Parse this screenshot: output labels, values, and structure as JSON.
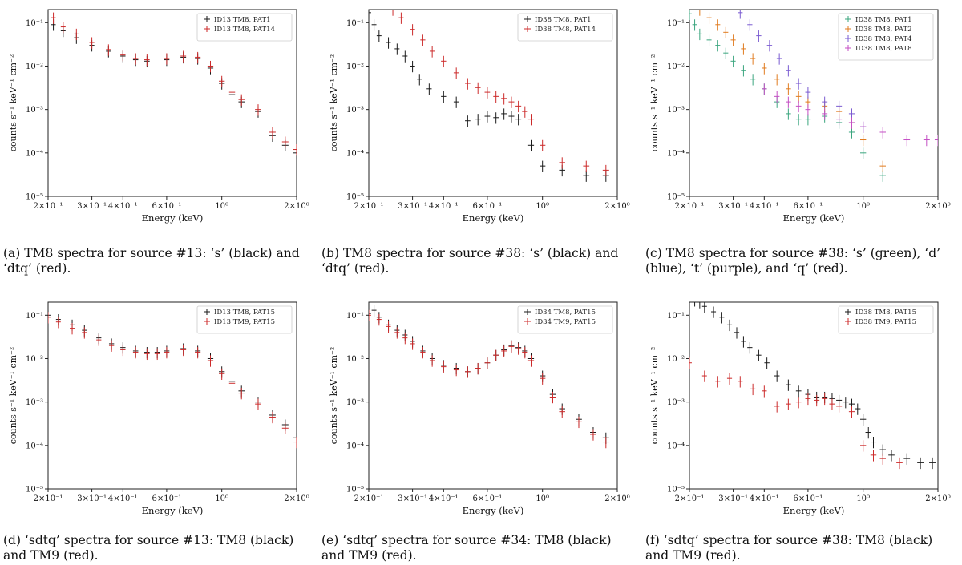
{
  "chart_data": [
    {
      "type": "scatter",
      "caption": "(a) TM8 spectra for source #13: ‘s’ (black) and ‘dtq’ (red).",
      "xlabel": "Energy (keV)",
      "ylabel": "counts s⁻¹ keV⁻¹ cm⁻²",
      "xscale": "log",
      "yscale": "log",
      "xlim": [
        0.2,
        2.0
      ],
      "ylim": [
        1e-05,
        0.2
      ],
      "xticks": [
        {
          "value": 0.2,
          "label": "2×10⁻¹"
        },
        {
          "value": 0.3,
          "label": "3×10⁻¹"
        },
        {
          "value": 0.4,
          "label": "4×10⁻¹"
        },
        {
          "value": 0.6,
          "label": "6×10⁻¹"
        },
        {
          "value": 1.0,
          "label": "10⁰"
        },
        {
          "value": 2.0,
          "label": "2×10⁰"
        }
      ],
      "yticks": [
        {
          "value": 0.1,
          "label": "10⁻¹"
        },
        {
          "value": 0.01,
          "label": "10⁻²"
        },
        {
          "value": 0.001,
          "label": "10⁻³"
        },
        {
          "value": 0.0001,
          "label": "10⁻⁴"
        },
        {
          "value": 1e-05,
          "label": "10⁻⁵"
        }
      ],
      "legend": "top-right",
      "series": [
        {
          "name": "ID13 TM8, PAT1",
          "color": "#1a1a1a",
          "x": [
            0.21,
            0.23,
            0.26,
            0.3,
            0.35,
            0.4,
            0.45,
            0.5,
            0.6,
            0.7,
            0.8,
            0.9,
            1.0,
            1.1,
            1.2,
            1.4,
            1.6,
            1.8,
            2.0
          ],
          "y": [
            0.09,
            0.065,
            0.045,
            0.03,
            0.022,
            0.017,
            0.014,
            0.013,
            0.014,
            0.016,
            0.015,
            0.009,
            0.004,
            0.0022,
            0.0015,
            0.0009,
            0.00025,
            0.00015,
            0.0001
          ]
        },
        {
          "name": "ID13 TM8, PAT14",
          "color": "#cc2a2a",
          "x": [
            0.21,
            0.23,
            0.26,
            0.3,
            0.35,
            0.4,
            0.45,
            0.5,
            0.6,
            0.7,
            0.8,
            0.9,
            1.0,
            1.1,
            1.2,
            1.4,
            1.6,
            1.8,
            2.0
          ],
          "y": [
            0.13,
            0.08,
            0.055,
            0.035,
            0.024,
            0.018,
            0.015,
            0.014,
            0.015,
            0.017,
            0.016,
            0.01,
            0.0045,
            0.0025,
            0.0017,
            0.001,
            0.0003,
            0.00018,
            0.00012
          ]
        }
      ]
    },
    {
      "type": "scatter",
      "caption": "(b) TM8 spectra for source #38: ‘s’ (black) and ‘dtq’ (red).",
      "xlabel": "Energy (keV)",
      "ylabel": "counts s⁻¹ keV⁻¹ cm⁻²",
      "xscale": "log",
      "yscale": "log",
      "xlim": [
        0.2,
        2.0
      ],
      "ylim": [
        1e-05,
        0.2
      ],
      "xticks": [
        {
          "value": 0.2,
          "label": "2×10⁻¹"
        },
        {
          "value": 0.3,
          "label": "3×10⁻¹"
        },
        {
          "value": 0.4,
          "label": "4×10⁻¹"
        },
        {
          "value": 0.6,
          "label": "6×10⁻¹"
        },
        {
          "value": 1.0,
          "label": "10⁰"
        },
        {
          "value": 2.0,
          "label": "2×10⁰"
        }
      ],
      "yticks": [
        {
          "value": 0.1,
          "label": "10⁻¹"
        },
        {
          "value": 0.01,
          "label": "10⁻²"
        },
        {
          "value": 0.001,
          "label": "10⁻³"
        },
        {
          "value": 0.0001,
          "label": "10⁻⁴"
        },
        {
          "value": 1e-05,
          "label": "10⁻⁵"
        }
      ],
      "legend": "top-right",
      "series": [
        {
          "name": "ID38 TM8, PAT1",
          "color": "#1a1a1a",
          "x": [
            0.2,
            0.21,
            0.22,
            0.24,
            0.26,
            0.28,
            0.3,
            0.32,
            0.35,
            0.4,
            0.45,
            0.5,
            0.55,
            0.6,
            0.65,
            0.7,
            0.75,
            0.8,
            0.9,
            1.0,
            1.2,
            1.5,
            1.8
          ],
          "y": [
            0.17,
            0.09,
            0.05,
            0.035,
            0.025,
            0.017,
            0.01,
            0.005,
            0.003,
            0.002,
            0.0015,
            0.00055,
            0.0006,
            0.0007,
            0.00065,
            0.0008,
            0.0007,
            0.0006,
            0.00015,
            5e-05,
            4e-05,
            3e-05,
            3e-05
          ]
        },
        {
          "name": "ID38 TM8, PAT14",
          "color": "#cc2a2a",
          "x": [
            0.25,
            0.27,
            0.3,
            0.33,
            0.36,
            0.4,
            0.45,
            0.5,
            0.55,
            0.6,
            0.65,
            0.7,
            0.75,
            0.8,
            0.85,
            0.9,
            1.0,
            1.2,
            1.5,
            1.8
          ],
          "y": [
            0.2,
            0.13,
            0.07,
            0.04,
            0.022,
            0.013,
            0.007,
            0.004,
            0.0032,
            0.0025,
            0.002,
            0.0018,
            0.0015,
            0.0012,
            0.0009,
            0.0006,
            0.00015,
            6e-05,
            5e-05,
            4e-05
          ]
        }
      ]
    },
    {
      "type": "scatter",
      "caption": "(c) TM8 spectra for source #38: ‘s’ (green), ‘d’ (blue), ‘t’ (purple), and ‘q’ (red).",
      "xlabel": "Energy (keV)",
      "ylabel": "counts s⁻¹ keV⁻¹ cm⁻²",
      "xscale": "log",
      "yscale": "log",
      "xlim": [
        0.2,
        2.0
      ],
      "ylim": [
        1e-05,
        0.2
      ],
      "xticks": [
        {
          "value": 0.2,
          "label": "2×10⁻¹"
        },
        {
          "value": 0.3,
          "label": "3×10⁻¹"
        },
        {
          "value": 0.4,
          "label": "4×10⁻¹"
        },
        {
          "value": 0.6,
          "label": "6×10⁻¹"
        },
        {
          "value": 1.0,
          "label": "10⁰"
        },
        {
          "value": 2.0,
          "label": "2×10⁰"
        }
      ],
      "yticks": [
        {
          "value": 0.1,
          "label": "10⁻¹"
        },
        {
          "value": 0.01,
          "label": "10⁻²"
        },
        {
          "value": 0.001,
          "label": "10⁻³"
        },
        {
          "value": 0.0001,
          "label": "10⁻⁴"
        },
        {
          "value": 1e-05,
          "label": "10⁻⁵"
        }
      ],
      "legend": "top-right",
      "series": [
        {
          "name": "ID38 TM8, PAT1",
          "color": "#3aa57e",
          "x": [
            0.2,
            0.21,
            0.22,
            0.24,
            0.26,
            0.28,
            0.3,
            0.33,
            0.36,
            0.4,
            0.45,
            0.5,
            0.55,
            0.6,
            0.7,
            0.8,
            0.9,
            1.0,
            1.2
          ],
          "y": [
            0.16,
            0.09,
            0.055,
            0.04,
            0.03,
            0.02,
            0.013,
            0.008,
            0.005,
            0.003,
            0.0015,
            0.0008,
            0.0006,
            0.0006,
            0.0007,
            0.0005,
            0.0003,
            0.0001,
            3e-05
          ]
        },
        {
          "name": "ID38 TM8, PAT2",
          "color": "#e07b1f",
          "x": [
            0.22,
            0.24,
            0.26,
            0.28,
            0.3,
            0.33,
            0.36,
            0.4,
            0.45,
            0.5,
            0.55,
            0.6,
            0.7,
            0.8,
            0.9,
            1.0,
            1.2
          ],
          "y": [
            0.2,
            0.13,
            0.09,
            0.06,
            0.04,
            0.025,
            0.015,
            0.009,
            0.005,
            0.003,
            0.002,
            0.0015,
            0.0012,
            0.0009,
            0.0005,
            0.0002,
            5e-05
          ]
        },
        {
          "name": "ID38 TM8, PAT4",
          "color": "#7a5bd1",
          "x": [
            0.32,
            0.35,
            0.38,
            0.42,
            0.46,
            0.5,
            0.55,
            0.6,
            0.7,
            0.8,
            0.9,
            1.0
          ],
          "y": [
            0.17,
            0.09,
            0.05,
            0.03,
            0.015,
            0.008,
            0.004,
            0.0025,
            0.0015,
            0.0012,
            0.0008,
            0.0004
          ]
        },
        {
          "name": "ID38 TM8, PAT8",
          "color": "#c44fc4",
          "x": [
            0.4,
            0.45,
            0.5,
            0.55,
            0.6,
            0.7,
            0.8,
            0.9,
            1.0,
            1.2,
            1.5,
            1.8,
            2.0
          ],
          "y": [
            0.003,
            0.002,
            0.0015,
            0.0012,
            0.001,
            0.0008,
            0.0006,
            0.0005,
            0.0004,
            0.0003,
            0.0002,
            0.0002,
            0.0002
          ]
        }
      ]
    },
    {
      "type": "scatter",
      "caption": "(d) ‘sdtq’ spectra for source #13: TM8 (black) and TM9 (red).",
      "xlabel": "Energy (keV)",
      "ylabel": "counts s⁻¹ keV⁻¹ cm⁻²",
      "xscale": "log",
      "yscale": "log",
      "xlim": [
        0.2,
        2.0
      ],
      "ylim": [
        1e-05,
        0.2
      ],
      "xticks": [
        {
          "value": 0.2,
          "label": "2×10⁻¹"
        },
        {
          "value": 0.3,
          "label": "3×10⁻¹"
        },
        {
          "value": 0.4,
          "label": "4×10⁻¹"
        },
        {
          "value": 0.6,
          "label": "6×10⁻¹"
        },
        {
          "value": 1.0,
          "label": "10⁰"
        },
        {
          "value": 2.0,
          "label": "2×10⁰"
        }
      ],
      "yticks": [
        {
          "value": 0.1,
          "label": "10⁻¹"
        },
        {
          "value": 0.01,
          "label": "10⁻²"
        },
        {
          "value": 0.001,
          "label": "10⁻³"
        },
        {
          "value": 0.0001,
          "label": "10⁻⁴"
        },
        {
          "value": 1e-05,
          "label": "10⁻⁵"
        }
      ],
      "legend": "top-right",
      "series": [
        {
          "name": "ID13 TM8, PAT15",
          "color": "#1a1a1a",
          "x": [
            0.2,
            0.22,
            0.25,
            0.28,
            0.32,
            0.36,
            0.4,
            0.45,
            0.5,
            0.55,
            0.6,
            0.7,
            0.8,
            0.9,
            1.0,
            1.1,
            1.2,
            1.4,
            1.6,
            1.8,
            2.0
          ],
          "y": [
            0.1,
            0.08,
            0.06,
            0.045,
            0.03,
            0.022,
            0.018,
            0.015,
            0.014,
            0.014,
            0.015,
            0.017,
            0.015,
            0.01,
            0.005,
            0.003,
            0.0018,
            0.001,
            0.0005,
            0.0003,
            0.00015
          ]
        },
        {
          "name": "ID13 TM9, PAT15",
          "color": "#cc2a2a",
          "x": [
            0.2,
            0.22,
            0.25,
            0.28,
            0.32,
            0.36,
            0.4,
            0.45,
            0.5,
            0.55,
            0.6,
            0.7,
            0.8,
            0.9,
            1.0,
            1.1,
            1.2,
            1.4,
            1.6,
            1.8,
            2.0
          ],
          "y": [
            0.09,
            0.07,
            0.05,
            0.04,
            0.027,
            0.02,
            0.016,
            0.014,
            0.013,
            0.013,
            0.014,
            0.016,
            0.014,
            0.009,
            0.0045,
            0.0027,
            0.0016,
            0.0009,
            0.00045,
            0.00025,
            0.00012
          ]
        }
      ]
    },
    {
      "type": "scatter",
      "caption": "(e) ‘sdtq’ spectra for source #34: TM8 (black) and TM9 (red).",
      "xlabel": "Energy (keV)",
      "ylabel": "counts s⁻¹ keV⁻¹ cm⁻²",
      "xscale": "log",
      "yscale": "log",
      "xlim": [
        0.2,
        2.0
      ],
      "ylim": [
        1e-05,
        0.2
      ],
      "xticks": [
        {
          "value": 0.2,
          "label": "2×10⁻¹"
        },
        {
          "value": 0.3,
          "label": "3×10⁻¹"
        },
        {
          "value": 0.4,
          "label": "4×10⁻¹"
        },
        {
          "value": 0.6,
          "label": "6×10⁻¹"
        },
        {
          "value": 1.0,
          "label": "10⁰"
        },
        {
          "value": 2.0,
          "label": "2×10⁰"
        }
      ],
      "yticks": [
        {
          "value": 0.1,
          "label": "10⁻¹"
        },
        {
          "value": 0.01,
          "label": "10⁻²"
        },
        {
          "value": 0.001,
          "label": "10⁻³"
        },
        {
          "value": 0.0001,
          "label": "10⁻⁴"
        },
        {
          "value": 1e-05,
          "label": "10⁻⁵"
        }
      ],
      "legend": "top-right",
      "series": [
        {
          "name": "ID34 TM8, PAT15",
          "color": "#1a1a1a",
          "x": [
            0.2,
            0.21,
            0.22,
            0.24,
            0.26,
            0.28,
            0.3,
            0.33,
            0.36,
            0.4,
            0.45,
            0.5,
            0.55,
            0.6,
            0.65,
            0.7,
            0.75,
            0.8,
            0.85,
            0.9,
            1.0,
            1.1,
            1.2,
            1.4,
            1.6,
            1.8
          ],
          "y": [
            0.11,
            0.13,
            0.09,
            0.06,
            0.045,
            0.035,
            0.025,
            0.015,
            0.01,
            0.007,
            0.006,
            0.005,
            0.006,
            0.008,
            0.012,
            0.016,
            0.02,
            0.018,
            0.015,
            0.01,
            0.004,
            0.0015,
            0.0007,
            0.0004,
            0.0002,
            0.00015
          ]
        },
        {
          "name": "ID34 TM9, PAT15",
          "color": "#cc2a2a",
          "x": [
            0.2,
            0.22,
            0.24,
            0.26,
            0.28,
            0.3,
            0.33,
            0.36,
            0.4,
            0.45,
            0.5,
            0.55,
            0.6,
            0.65,
            0.7,
            0.75,
            0.8,
            0.85,
            0.9,
            1.0,
            1.1,
            1.2,
            1.4,
            1.6,
            1.8
          ],
          "y": [
            0.1,
            0.08,
            0.055,
            0.04,
            0.03,
            0.022,
            0.014,
            0.009,
            0.0065,
            0.0055,
            0.005,
            0.006,
            0.008,
            0.012,
            0.015,
            0.019,
            0.017,
            0.014,
            0.009,
            0.0035,
            0.0013,
            0.0006,
            0.00035,
            0.00018,
            0.00012
          ]
        }
      ]
    },
    {
      "type": "scatter",
      "caption": "(f) ‘sdtq’ spectra for source #38: TM8 (black) and TM9 (red).",
      "xlabel": "Energy (keV)",
      "ylabel": "counts s⁻¹ keV⁻¹ cm⁻²",
      "xscale": "log",
      "yscale": "log",
      "xlim": [
        0.2,
        2.0
      ],
      "ylim": [
        1e-05,
        0.2
      ],
      "xticks": [
        {
          "value": 0.2,
          "label": "2×10⁻¹"
        },
        {
          "value": 0.3,
          "label": "3×10⁻¹"
        },
        {
          "value": 0.4,
          "label": "4×10⁻¹"
        },
        {
          "value": 0.6,
          "label": "6×10⁻¹"
        },
        {
          "value": 1.0,
          "label": "10⁰"
        },
        {
          "value": 2.0,
          "label": "2×10⁰"
        }
      ],
      "yticks": [
        {
          "value": 0.1,
          "label": "10⁻¹"
        },
        {
          "value": 0.01,
          "label": "10⁻²"
        },
        {
          "value": 0.001,
          "label": "10⁻³"
        },
        {
          "value": 0.0001,
          "label": "10⁻⁴"
        },
        {
          "value": 1e-05,
          "label": "10⁻⁵"
        }
      ],
      "legend": "top-right",
      "series": [
        {
          "name": "ID38 TM8, PAT15",
          "color": "#1a1a1a",
          "x": [
            0.21,
            0.22,
            0.23,
            0.25,
            0.27,
            0.29,
            0.31,
            0.33,
            0.35,
            0.38,
            0.41,
            0.45,
            0.5,
            0.55,
            0.6,
            0.65,
            0.7,
            0.75,
            0.8,
            0.85,
            0.9,
            0.95,
            1.0,
            1.05,
            1.1,
            1.2,
            1.3,
            1.5,
            1.7,
            1.9
          ],
          "y": [
            0.22,
            0.2,
            0.16,
            0.12,
            0.09,
            0.06,
            0.04,
            0.025,
            0.018,
            0.012,
            0.008,
            0.004,
            0.0025,
            0.0018,
            0.0015,
            0.0013,
            0.0013,
            0.0012,
            0.0011,
            0.001,
            0.0009,
            0.0007,
            0.0004,
            0.0002,
            0.00012,
            8e-05,
            6e-05,
            5e-05,
            4e-05,
            4e-05
          ]
        },
        {
          "name": "ID38 TM9, PAT15",
          "color": "#cc2a2a",
          "x": [
            0.2,
            0.23,
            0.26,
            0.29,
            0.32,
            0.36,
            0.4,
            0.45,
            0.5,
            0.55,
            0.6,
            0.65,
            0.7,
            0.75,
            0.8,
            0.9,
            1.0,
            1.1,
            1.2,
            1.4
          ],
          "y": [
            0.008,
            0.004,
            0.003,
            0.0035,
            0.003,
            0.002,
            0.0018,
            0.0008,
            0.0009,
            0.001,
            0.0012,
            0.0011,
            0.0012,
            0.0009,
            0.0008,
            0.0006,
            0.0001,
            6e-05,
            5e-05,
            4e-05
          ]
        }
      ]
    }
  ]
}
